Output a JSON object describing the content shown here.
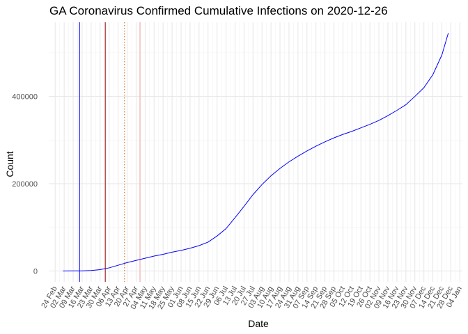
{
  "chart_data": {
    "type": "line",
    "title": "GA Coronavirus Confirmed Cumulative Infections on 2020-12-26",
    "xlabel": "Date",
    "ylabel": "Count",
    "xlim": [
      "2020-02-24",
      "2021-01-04"
    ],
    "ylim": [
      -25000,
      570000
    ],
    "grid": true,
    "legend": "none",
    "x_ticks": [
      "24 Feb",
      "02 Mar",
      "09 Mar",
      "16 Mar",
      "23 Mar",
      "30 Mar",
      "06 Apr",
      "13 Apr",
      "20 Apr",
      "27 Apr",
      "04 May",
      "11 May",
      "18 May",
      "25 May",
      "01 Jun",
      "08 Jun",
      "15 Jun",
      "22 Jun",
      "29 Jun",
      "06 Jul",
      "13 Jul",
      "20 Jul",
      "27 Jul",
      "03 Aug",
      "10 Aug",
      "17 Aug",
      "24 Aug",
      "31 Aug",
      "07 Sep",
      "14 Sep",
      "21 Sep",
      "28 Sep",
      "05 Oct",
      "12 Oct",
      "19 Oct",
      "26 Oct",
      "02 Nov",
      "09 Nov",
      "16 Nov",
      "23 Nov",
      "30 Nov",
      "07 Dec",
      "14 Dec",
      "21 Dec",
      "28 Dec",
      "04 Jan"
    ],
    "y_ticks": [
      0,
      200000,
      400000
    ],
    "y_tick_labels": [
      "0",
      "200000",
      "400000"
    ],
    "vlines": [
      {
        "date": "2020-03-14",
        "color": "#0000ff",
        "style": "solid"
      },
      {
        "date": "2020-04-03",
        "color": "#8b0000",
        "style": "solid"
      },
      {
        "date": "2020-04-18",
        "color": "#cd5c00",
        "style": "dotted"
      },
      {
        "date": "2020-04-30",
        "color": "#f4a0a0",
        "style": "solid"
      }
    ],
    "series": [
      {
        "color": "#0000ff",
        "points": [
          [
            "2020-03-01",
            0
          ],
          [
            "2020-03-09",
            40
          ],
          [
            "2020-03-16",
            150
          ],
          [
            "2020-03-23",
            1000
          ],
          [
            "2020-03-30",
            3000
          ],
          [
            "2020-04-06",
            7000
          ],
          [
            "2020-04-13",
            13000
          ],
          [
            "2020-04-20",
            19000
          ],
          [
            "2020-04-27",
            24000
          ],
          [
            "2020-05-04",
            29000
          ],
          [
            "2020-05-11",
            34000
          ],
          [
            "2020-05-18",
            38000
          ],
          [
            "2020-05-25",
            43000
          ],
          [
            "2020-06-01",
            47000
          ],
          [
            "2020-06-08",
            52000
          ],
          [
            "2020-06-15",
            58000
          ],
          [
            "2020-06-22",
            66000
          ],
          [
            "2020-06-29",
            80000
          ],
          [
            "2020-07-06",
            97000
          ],
          [
            "2020-07-13",
            122000
          ],
          [
            "2020-07-20",
            148000
          ],
          [
            "2020-07-27",
            175000
          ],
          [
            "2020-08-03",
            198000
          ],
          [
            "2020-08-10",
            218000
          ],
          [
            "2020-08-17",
            235000
          ],
          [
            "2020-08-24",
            250000
          ],
          [
            "2020-08-31",
            263000
          ],
          [
            "2020-09-07",
            275000
          ],
          [
            "2020-09-14",
            286000
          ],
          [
            "2020-09-21",
            296000
          ],
          [
            "2020-09-28",
            305000
          ],
          [
            "2020-10-05",
            313000
          ],
          [
            "2020-10-12",
            320000
          ],
          [
            "2020-10-19",
            328000
          ],
          [
            "2020-10-26",
            336000
          ],
          [
            "2020-11-02",
            345000
          ],
          [
            "2020-11-09",
            356000
          ],
          [
            "2020-11-16",
            368000
          ],
          [
            "2020-11-23",
            381000
          ],
          [
            "2020-11-30",
            400000
          ],
          [
            "2020-12-07",
            420000
          ],
          [
            "2020-12-14",
            450000
          ],
          [
            "2020-12-21",
            495000
          ],
          [
            "2020-12-26",
            545000
          ]
        ]
      }
    ]
  }
}
